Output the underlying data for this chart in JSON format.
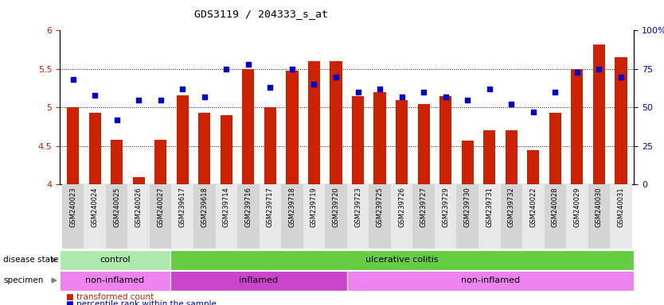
{
  "title": "GDS3119 / 204333_s_at",
  "categories": [
    "GSM240023",
    "GSM240024",
    "GSM240025",
    "GSM240026",
    "GSM240027",
    "GSM239617",
    "GSM239618",
    "GSM239714",
    "GSM239716",
    "GSM239717",
    "GSM239718",
    "GSM239719",
    "GSM239720",
    "GSM239723",
    "GSM239725",
    "GSM239726",
    "GSM239727",
    "GSM239729",
    "GSM239730",
    "GSM239731",
    "GSM239732",
    "GSM240022",
    "GSM240028",
    "GSM240029",
    "GSM240030",
    "GSM240031"
  ],
  "bar_values": [
    5.0,
    4.93,
    4.58,
    4.1,
    4.58,
    5.16,
    4.93,
    4.9,
    5.5,
    5.0,
    5.48,
    5.6,
    5.6,
    5.15,
    5.2,
    5.1,
    5.05,
    5.15,
    4.57,
    4.7,
    4.7,
    4.45,
    4.93,
    5.5,
    5.82,
    5.65
  ],
  "percentile_values": [
    68,
    58,
    42,
    55,
    55,
    62,
    57,
    75,
    78,
    63,
    75,
    65,
    70,
    60,
    62,
    57,
    60,
    57,
    55,
    62,
    52,
    47,
    60,
    73,
    75,
    70
  ],
  "bar_color": "#cc2200",
  "dot_color": "#0000cc",
  "ylim_left": [
    4.0,
    6.0
  ],
  "ylim_right": [
    0,
    100
  ],
  "yticks_left": [
    4.0,
    4.5,
    5.0,
    5.5,
    6.0
  ],
  "ytick_labels_left": [
    "4",
    "4.5",
    "5",
    "5.5",
    "6"
  ],
  "yticks_right": [
    0,
    25,
    50,
    75,
    100
  ],
  "ytick_labels_right": [
    "0",
    "25",
    "50",
    "75",
    "100%"
  ],
  "grid_values": [
    4.5,
    5.0,
    5.5
  ],
  "disease_state_groups": [
    {
      "label": "control",
      "start": 0,
      "end": 5,
      "color": "#aeeaae"
    },
    {
      "label": "ulcerative colitis",
      "start": 5,
      "end": 26,
      "color": "#66cc44"
    }
  ],
  "specimen_groups": [
    {
      "label": "non-inflamed",
      "start": 0,
      "end": 5,
      "color": "#ee82ee"
    },
    {
      "label": "inflamed",
      "start": 5,
      "end": 13,
      "color": "#cc44cc"
    },
    {
      "label": "non-inflamed",
      "start": 13,
      "end": 26,
      "color": "#ee82ee"
    }
  ],
  "legend_items": [
    {
      "label": "transformed count",
      "color": "#cc2200"
    },
    {
      "label": "percentile rank within the sample",
      "color": "#0000cc"
    }
  ],
  "plot_bg_color": "#ffffff",
  "xtick_bg_even": "#d4d4d4",
  "xtick_bg_odd": "#e8e8e8"
}
